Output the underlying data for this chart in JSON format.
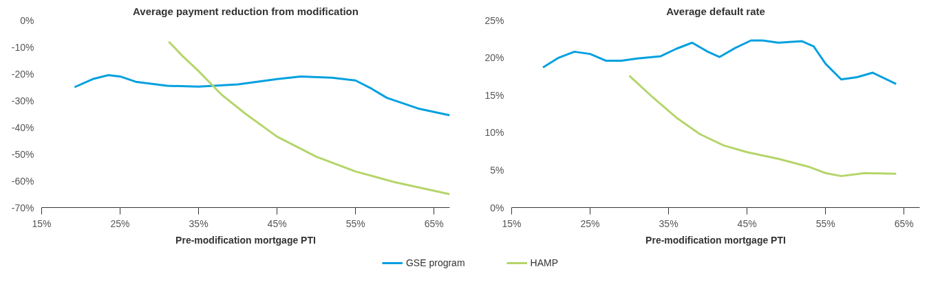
{
  "chart_data": [
    {
      "type": "line",
      "title": "Average payment reduction from modification",
      "xlabel": "Pre-modification mortgage PTI",
      "xlim": [
        15,
        67
      ],
      "xticks": [
        {
          "value": 15,
          "label": "15%"
        },
        {
          "value": 25,
          "label": "25%"
        },
        {
          "value": 35,
          "label": "35%"
        },
        {
          "value": 45,
          "label": "45%"
        },
        {
          "value": 55,
          "label": "55%"
        },
        {
          "value": 65,
          "label": "65%"
        }
      ],
      "ylim": [
        -70,
        0
      ],
      "yticks": [
        {
          "value": 0,
          "label": "0%"
        },
        {
          "value": -10,
          "label": "-10%"
        },
        {
          "value": -20,
          "label": "-20%"
        },
        {
          "value": -30,
          "label": "-30%"
        },
        {
          "value": -40,
          "label": "-40%"
        },
        {
          "value": -50,
          "label": "-50%"
        },
        {
          "value": -60,
          "label": "-60%"
        },
        {
          "value": -70,
          "label": "-70%"
        }
      ],
      "grid": false,
      "legend": "bottom",
      "series": [
        {
          "name": "GSE program",
          "color": "#00a0df",
          "x": [
            19.2,
            21.5,
            23.5,
            25,
            27,
            31,
            35,
            40,
            45,
            48,
            52,
            55,
            57,
            59,
            63,
            67
          ],
          "values": [
            -25,
            -22,
            -20.5,
            -21,
            -23,
            -24.5,
            -24.8,
            -24,
            -22,
            -21,
            -21.5,
            -22.5,
            -25.5,
            -29,
            -33,
            -35.5
          ]
        },
        {
          "name": "HAMP",
          "color": "#b5d56a",
          "x": [
            31.2,
            33,
            35,
            38,
            41,
            45,
            50,
            55,
            60,
            67
          ],
          "values": [
            -8,
            -13.5,
            -19,
            -28,
            -35,
            -43.5,
            -51,
            -56.5,
            -60.5,
            -65
          ]
        }
      ]
    },
    {
      "type": "line",
      "title": "Average default rate",
      "xlabel": "Pre-modification mortgage PTI",
      "xlim": [
        15,
        67
      ],
      "xticks": [
        {
          "value": 15,
          "label": "15%"
        },
        {
          "value": 25,
          "label": "25%"
        },
        {
          "value": 35,
          "label": "35%"
        },
        {
          "value": 45,
          "label": "45%"
        },
        {
          "value": 55,
          "label": "55%"
        },
        {
          "value": 65,
          "label": "65%"
        }
      ],
      "ylim": [
        0,
        25
      ],
      "yticks": [
        {
          "value": 0,
          "label": "0%"
        },
        {
          "value": 5,
          "label": "5%"
        },
        {
          "value": 10,
          "label": "10%"
        },
        {
          "value": 15,
          "label": "15%"
        },
        {
          "value": 20,
          "label": "20%"
        },
        {
          "value": 25,
          "label": "25%"
        }
      ],
      "grid": false,
      "series": [
        {
          "color": "#00a0df",
          "x": [
            19,
            21,
            23,
            25,
            27,
            29,
            31,
            34,
            36,
            38,
            40,
            41.5,
            43.5,
            45.5,
            47,
            49,
            52,
            53.5,
            55,
            57,
            59,
            61,
            64
          ],
          "values": [
            18.7,
            20.0,
            20.8,
            20.5,
            19.6,
            19.6,
            19.9,
            20.2,
            21.2,
            22,
            20.8,
            20.1,
            21.3,
            22.3,
            22.3,
            22,
            22.2,
            21.5,
            19.2,
            17.1,
            17.4,
            18,
            16.5
          ]
        },
        {
          "color": "#b5d56a",
          "x": [
            30,
            33,
            36,
            39,
            42,
            45,
            49,
            53,
            55,
            57,
            60,
            64
          ],
          "values": [
            17.6,
            14.7,
            12,
            9.8,
            8.3,
            7.4,
            6.5,
            5.4,
            4.6,
            4.2,
            4.6,
            4.5
          ]
        }
      ]
    }
  ]
}
